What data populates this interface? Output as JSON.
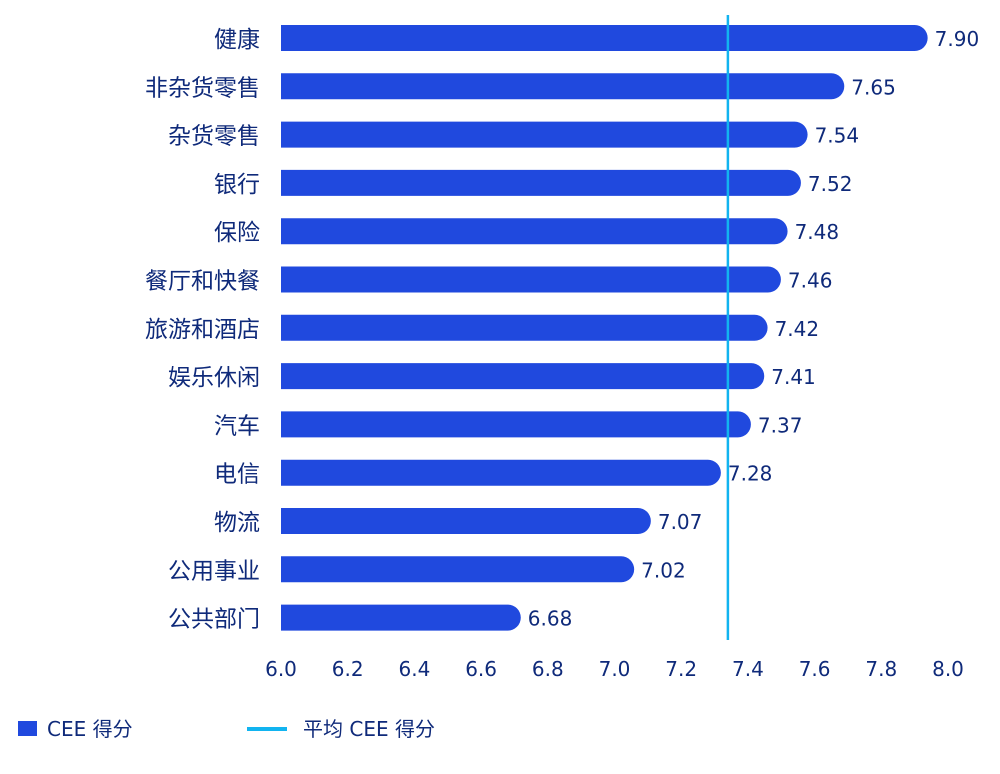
{
  "chart_data": {
    "type": "bar",
    "orientation": "horizontal",
    "categories": [
      "健康",
      "非杂货零售",
      "杂货零售",
      "银行",
      "保险",
      "餐厅和快餐",
      "旅游和酒店",
      "娱乐休闲",
      "汽车",
      "电信",
      "物流",
      "公用事业",
      "公共部门"
    ],
    "series": [
      {
        "name": "CEE 得分",
        "values": [
          7.9,
          7.65,
          7.54,
          7.52,
          7.48,
          7.46,
          7.42,
          7.41,
          7.37,
          7.28,
          7.07,
          7.02,
          6.68
        ]
      }
    ],
    "reference_line": {
      "name": "平均 CEE 得分",
      "value": 7.34
    },
    "xlim": [
      6.0,
      8.0
    ],
    "x_ticks": [
      "6.0",
      "6.2",
      "6.4",
      "6.6",
      "6.8",
      "7.0",
      "7.2",
      "7.4",
      "7.6",
      "7.8",
      "8.0"
    ],
    "grid": false,
    "legend_position": "bottom-left",
    "colors": {
      "bar": "#2049DE",
      "reference_line": "#12B4F0",
      "text": "#0F2A7A"
    }
  }
}
